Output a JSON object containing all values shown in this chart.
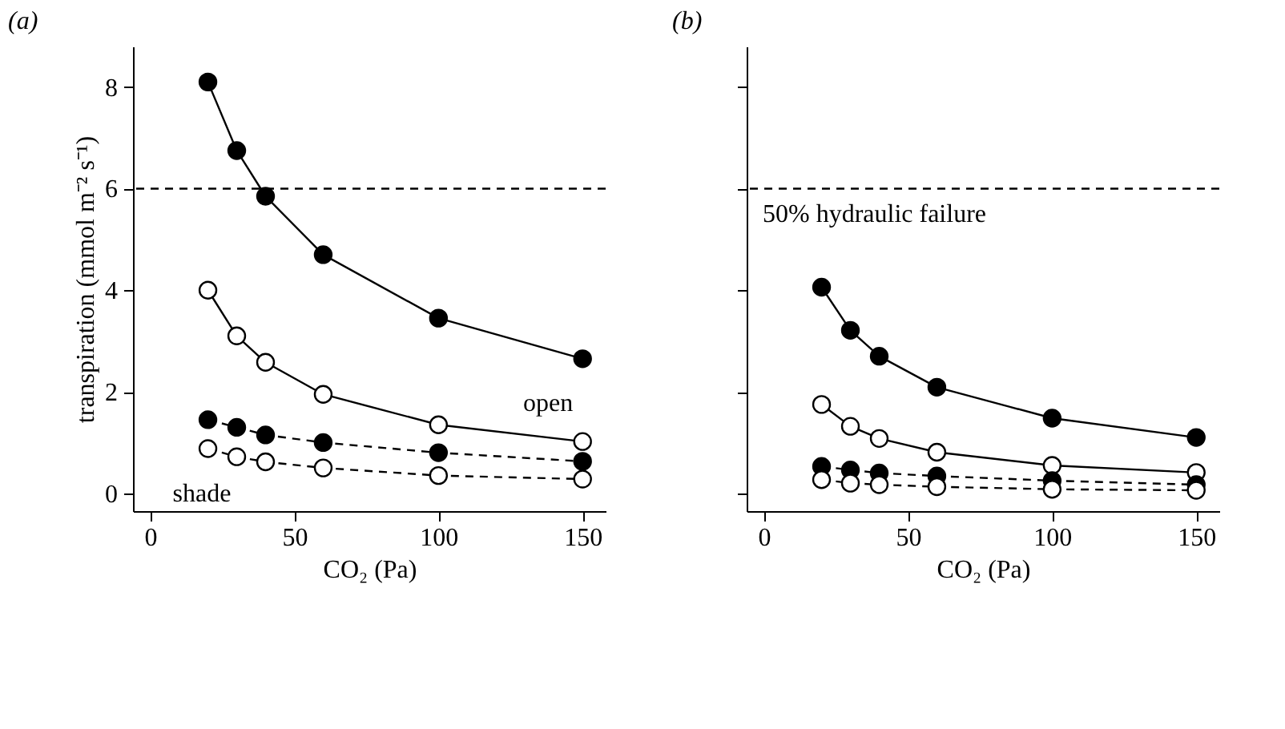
{
  "chart_data": [
    {
      "type": "line",
      "title": "(a)",
      "xlabel": "CO₂ (Pa)",
      "ylabel": "transpiration (mmol m⁻² s⁻¹)",
      "x": [
        20,
        30,
        40,
        60,
        100,
        150
      ],
      "xlim": [
        -6,
        158
      ],
      "xticks": [
        0,
        50,
        100,
        150
      ],
      "ylim": [
        -0.35,
        8.8
      ],
      "yticks": [
        0,
        2,
        4,
        6,
        8
      ],
      "grid": false,
      "series": [
        {
          "color": "#000000",
          "marker": "circle",
          "line_style": "solid",
          "values": [
            8.1,
            6.75,
            5.85,
            4.7,
            3.45,
            2.65
          ]
        },
        {
          "color": "#000000",
          "marker": "open_circle",
          "line_style": "solid",
          "values": [
            4.0,
            3.1,
            2.58,
            1.95,
            1.35,
            1.02
          ]
        },
        {
          "color": "#000000",
          "marker": "circle",
          "line_style": "dashed",
          "values": [
            1.45,
            1.3,
            1.15,
            1.0,
            0.8,
            0.63
          ]
        },
        {
          "color": "#000000",
          "marker": "open_circle",
          "line_style": "dashed",
          "values": [
            0.88,
            0.72,
            0.62,
            0.5,
            0.35,
            0.28
          ]
        }
      ],
      "ref_lines": [
        {
          "axis": "y",
          "value": 6,
          "line_style": "dashed",
          "color": "#000000"
        }
      ],
      "annotations": [
        "open",
        "shade"
      ]
    },
    {
      "type": "line",
      "title": "(b)",
      "xlabel": "CO₂ (Pa)",
      "x": [
        20,
        30,
        40,
        60,
        100,
        150
      ],
      "xlim": [
        -6,
        158
      ],
      "xticks": [
        0,
        50,
        100,
        150
      ],
      "ylim": [
        -0.35,
        8.8
      ],
      "yticks": [
        0,
        2,
        4,
        6,
        8
      ],
      "tick_labels": "x",
      "grid": false,
      "series": [
        {
          "color": "#000000",
          "marker": "circle",
          "line_style": "solid",
          "values": [
            4.06,
            3.21,
            2.7,
            2.09,
            1.48,
            1.1
          ]
        },
        {
          "color": "#000000",
          "marker": "open_circle",
          "line_style": "solid",
          "values": [
            1.75,
            1.32,
            1.08,
            0.81,
            0.55,
            0.41
          ]
        },
        {
          "color": "#000000",
          "marker": "circle",
          "line_style": "dashed",
          "values": [
            0.53,
            0.46,
            0.4,
            0.34,
            0.25,
            0.17
          ]
        },
        {
          "color": "#000000",
          "marker": "open_circle",
          "line_style": "dashed",
          "values": [
            0.27,
            0.2,
            0.17,
            0.13,
            0.08,
            0.06
          ]
        }
      ],
      "ref_lines": [
        {
          "axis": "y",
          "value": 6,
          "label": "50% hydraulic failure",
          "line_style": "dashed",
          "color": "#000000"
        }
      ]
    }
  ]
}
